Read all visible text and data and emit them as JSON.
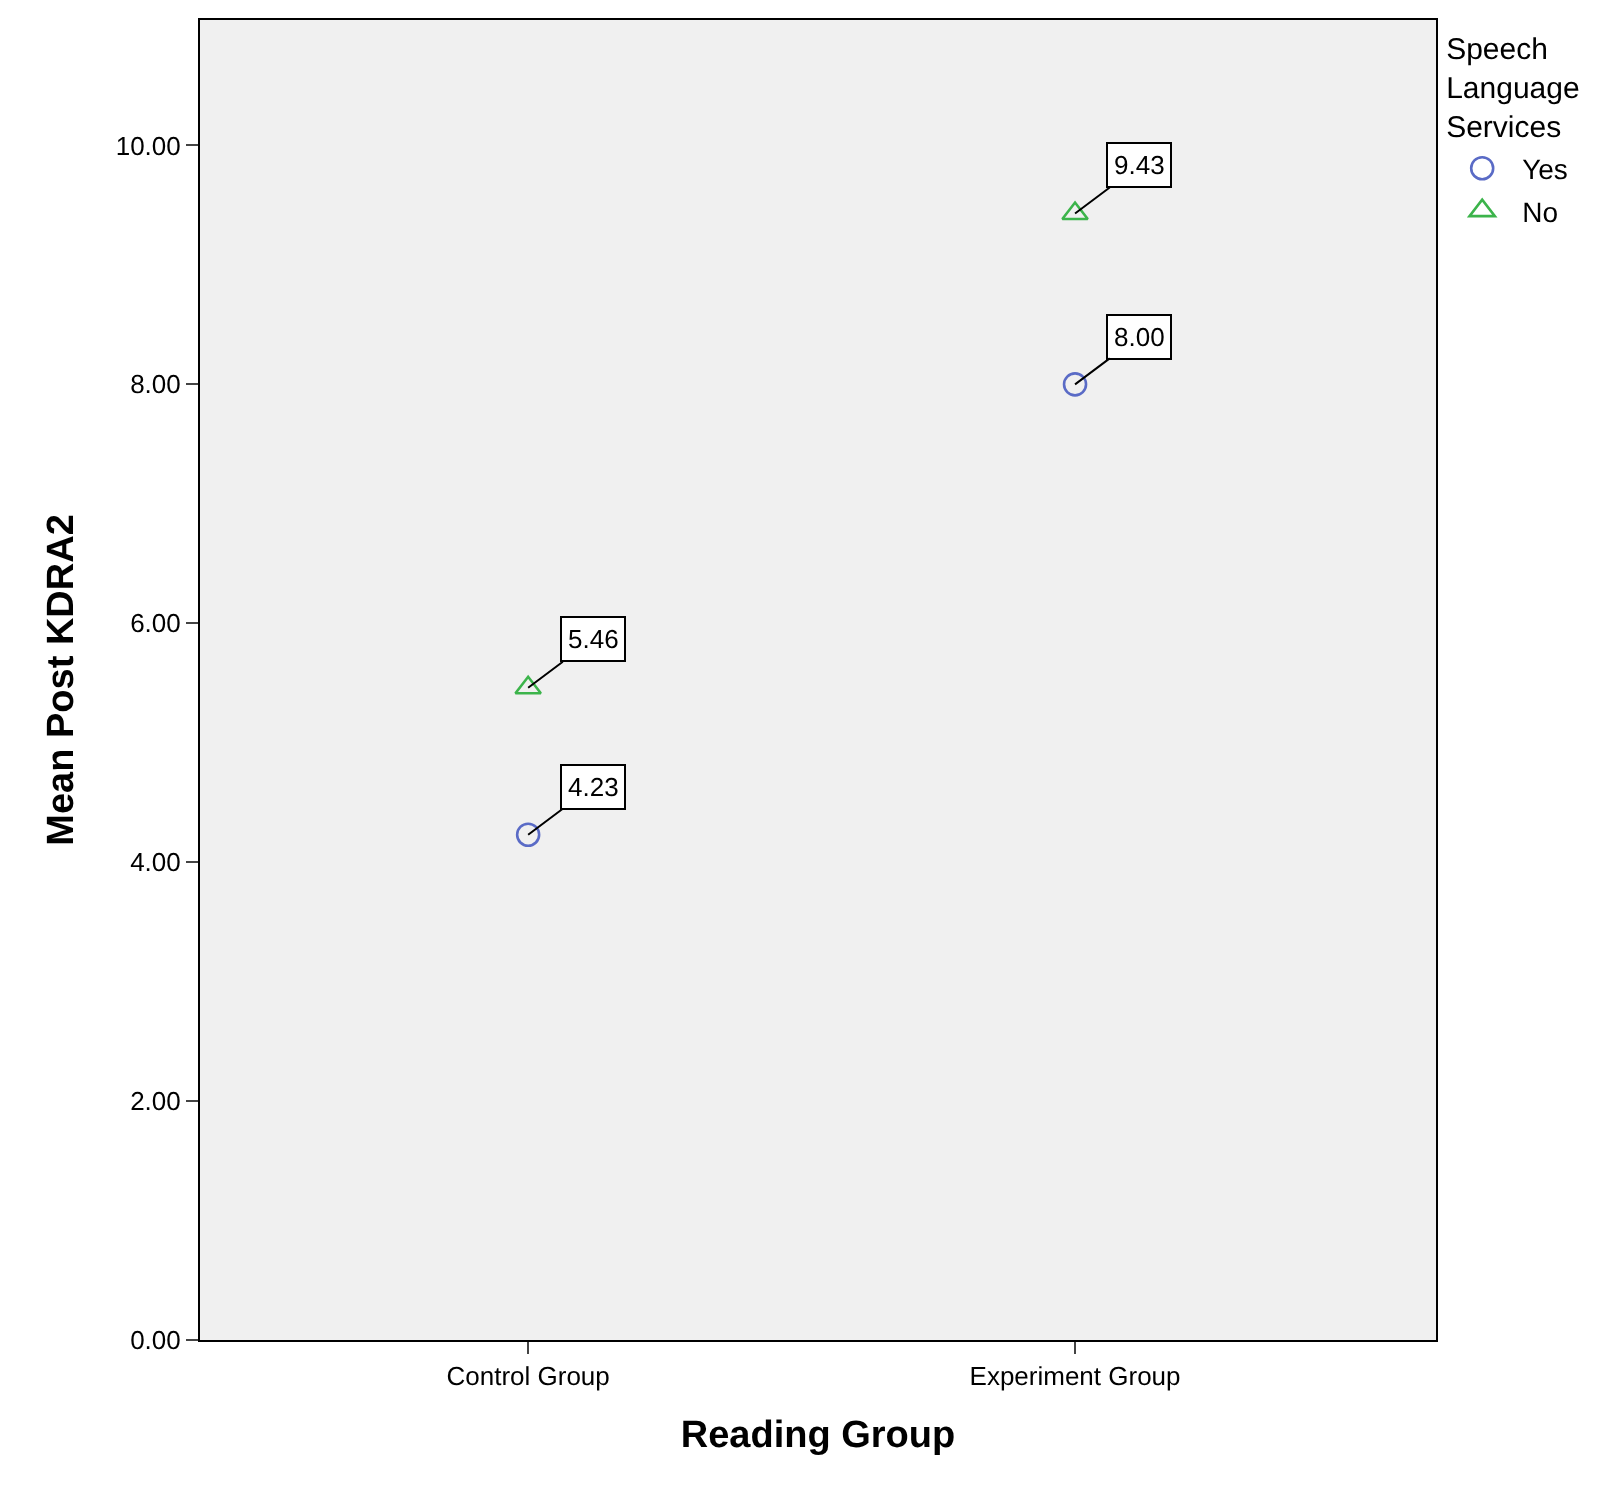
{
  "chart_data": {
    "type": "scatter",
    "xlabel": "Reading Group",
    "ylabel": "Mean Post KDRA2",
    "legend_title": "Speech Language Services",
    "categories": [
      "Control Group",
      "Experiment Group"
    ],
    "series": [
      {
        "name": "Yes",
        "color": "#5a6bc6",
        "marker": "circle",
        "values": [
          4.23,
          8.0
        ],
        "value_labels": [
          "4.23",
          "8.00"
        ]
      },
      {
        "name": "No",
        "color": "#3cb44b",
        "marker": "triangle",
        "values": [
          5.46,
          9.43
        ],
        "value_labels": [
          "5.46",
          "9.43"
        ]
      }
    ],
    "ylim": [
      0,
      11.05
    ],
    "yticks": [
      {
        "value": 0,
        "label": "0.00"
      },
      {
        "value": 2,
        "label": "2.00"
      },
      {
        "value": 4,
        "label": "4.00"
      },
      {
        "value": 6,
        "label": "6.00"
      },
      {
        "value": 8,
        "label": "8.00"
      },
      {
        "value": 10,
        "label": "10.00"
      }
    ],
    "grid": false,
    "legend": "top right"
  }
}
